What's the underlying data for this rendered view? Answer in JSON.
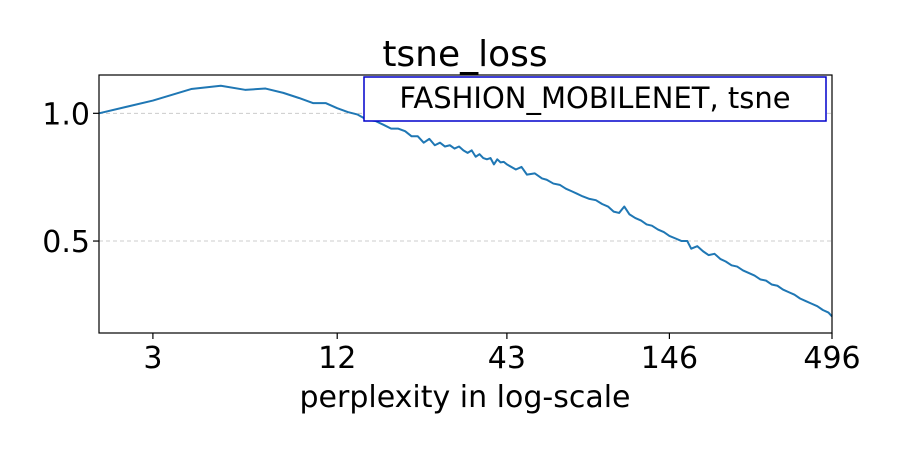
{
  "chart_data": {
    "type": "line",
    "title": "tsne_loss",
    "xlabel": "perplexity in log-scale",
    "ylabel": "",
    "x_scale": "log",
    "x_ticks": [
      3,
      12,
      43,
      146,
      496
    ],
    "y_ticks": [
      0.5,
      1.0
    ],
    "y_tick_labels": [
      "0.5",
      "1.0"
    ],
    "ylim": [
      0.14,
      1.15
    ],
    "grid": "horizontal dashed",
    "legend_text": "FASHION_MOBILENET, tsne",
    "legend_placement": "top-right",
    "series": [
      {
        "color": "#1f77b4",
        "points": [
          [
            2,
            1.0
          ],
          [
            3,
            1.05
          ],
          [
            4,
            1.095
          ],
          [
            5,
            1.108
          ],
          [
            6,
            1.092
          ],
          [
            7,
            1.097
          ],
          [
            8,
            1.08
          ],
          [
            9,
            1.06
          ],
          [
            10,
            1.04
          ],
          [
            11,
            1.04
          ],
          [
            12,
            1.02
          ],
          [
            13,
            1.005
          ],
          [
            14,
            0.995
          ],
          [
            15,
            0.975
          ],
          [
            16,
            0.97
          ],
          [
            17,
            0.955
          ],
          [
            18,
            0.94
          ],
          [
            19,
            0.94
          ],
          [
            20,
            0.93
          ],
          [
            21,
            0.91
          ],
          [
            22,
            0.91
          ],
          [
            23,
            0.885
          ],
          [
            24,
            0.9
          ],
          [
            25,
            0.875
          ],
          [
            26,
            0.885
          ],
          [
            27,
            0.87
          ],
          [
            28,
            0.875
          ],
          [
            29,
            0.862
          ],
          [
            30,
            0.87
          ],
          [
            31,
            0.855
          ],
          [
            32,
            0.845
          ],
          [
            33,
            0.855
          ],
          [
            34,
            0.83
          ],
          [
            35,
            0.84
          ],
          [
            36,
            0.825
          ],
          [
            37,
            0.82
          ],
          [
            38,
            0.825
          ],
          [
            39,
            0.8
          ],
          [
            40,
            0.82
          ],
          [
            41,
            0.808
          ],
          [
            42,
            0.81
          ],
          [
            43,
            0.8
          ],
          [
            46,
            0.78
          ],
          [
            48,
            0.79
          ],
          [
            50,
            0.76
          ],
          [
            53,
            0.765
          ],
          [
            56,
            0.745
          ],
          [
            58,
            0.74
          ],
          [
            61,
            0.725
          ],
          [
            64,
            0.72
          ],
          [
            67,
            0.705
          ],
          [
            70,
            0.695
          ],
          [
            73,
            0.685
          ],
          [
            76,
            0.675
          ],
          [
            80,
            0.665
          ],
          [
            84,
            0.66
          ],
          [
            88,
            0.645
          ],
          [
            92,
            0.635
          ],
          [
            96,
            0.615
          ],
          [
            100,
            0.61
          ],
          [
            104,
            0.635
          ],
          [
            108,
            0.605
          ],
          [
            113,
            0.59
          ],
          [
            118,
            0.58
          ],
          [
            123,
            0.565
          ],
          [
            128,
            0.56
          ],
          [
            134,
            0.545
          ],
          [
            140,
            0.535
          ],
          [
            146,
            0.52
          ],
          [
            153,
            0.51
          ],
          [
            160,
            0.5
          ],
          [
            167,
            0.5
          ],
          [
            172,
            0.47
          ],
          [
            180,
            0.48
          ],
          [
            188,
            0.46
          ],
          [
            196,
            0.445
          ],
          [
            205,
            0.45
          ],
          [
            214,
            0.43
          ],
          [
            223,
            0.42
          ],
          [
            233,
            0.405
          ],
          [
            243,
            0.4
          ],
          [
            254,
            0.385
          ],
          [
            265,
            0.375
          ],
          [
            277,
            0.365
          ],
          [
            289,
            0.35
          ],
          [
            302,
            0.345
          ],
          [
            315,
            0.33
          ],
          [
            329,
            0.325
          ],
          [
            343,
            0.31
          ],
          [
            358,
            0.3
          ],
          [
            374,
            0.29
          ],
          [
            390,
            0.275
          ],
          [
            407,
            0.265
          ],
          [
            425,
            0.255
          ],
          [
            444,
            0.245
          ],
          [
            463,
            0.23
          ],
          [
            483,
            0.22
          ],
          [
            496,
            0.205
          ]
        ]
      }
    ]
  }
}
